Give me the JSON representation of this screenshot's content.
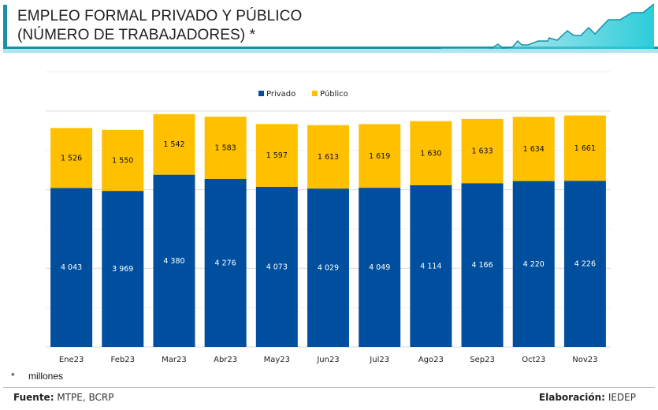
{
  "header": {
    "title_line1": "EMPLEO FORMAL PRIVADO Y PÚBLICO",
    "title_line2": "(NÚMERO DE TRABAJADORES) *",
    "accent_color": "#1a8fa6",
    "decoration_icon": "area-trend-icon"
  },
  "footnote": {
    "marker": "*",
    "text": "millones"
  },
  "footer": {
    "source_label": "Fuente:",
    "source_value": "MTPE, BCRP",
    "credit_label": "Elaboración:",
    "credit_value": "IEDEP"
  },
  "chart_data": {
    "type": "bar",
    "stacked": true,
    "title": "EMPLEO FORMAL PRIVADO Y PÚBLICO (NÚMERO DE TRABAJADORES) *",
    "xlabel": "",
    "ylabel": "",
    "ylim": [
      0,
      7000
    ],
    "grid": true,
    "legend_position": "top-center",
    "categories": [
      "Ene23",
      "Feb23",
      "Mar23",
      "Abr23",
      "May23",
      "Jun23",
      "Jul23",
      "Ago23",
      "Sep23",
      "Oct23",
      "Nov23"
    ],
    "series": [
      {
        "name": "Privado",
        "color": "#004f9f",
        "values": [
          4043,
          3969,
          4380,
          4276,
          4073,
          4029,
          4049,
          4114,
          4166,
          4220,
          4226
        ],
        "labels": [
          "4 043",
          "3 969",
          "4 380",
          "4 276",
          "4 073",
          "4 029",
          "4 049",
          "4 114",
          "4 166",
          "4 220",
          "4 226"
        ]
      },
      {
        "name": "Público",
        "color": "#ffc000",
        "values": [
          1526,
          1550,
          1542,
          1583,
          1597,
          1613,
          1619,
          1630,
          1633,
          1634,
          1661
        ],
        "labels": [
          "1 526",
          "1 550",
          "1 542",
          "1 583",
          "1 597",
          "1 613",
          "1 619",
          "1 630",
          "1 633",
          "1 634",
          "1 661"
        ]
      }
    ]
  }
}
